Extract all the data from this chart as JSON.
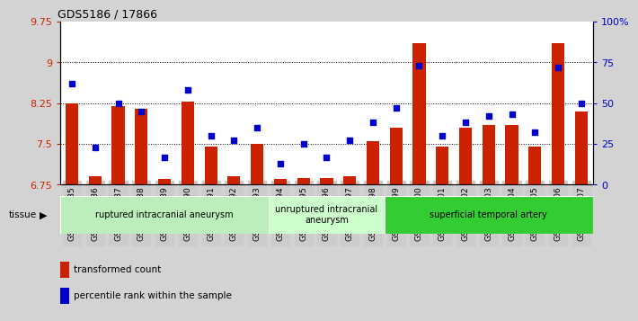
{
  "title": "GDS5186 / 17866",
  "samples": [
    "GSM1306885",
    "GSM1306886",
    "GSM1306887",
    "GSM1306888",
    "GSM1306889",
    "GSM1306890",
    "GSM1306891",
    "GSM1306892",
    "GSM1306893",
    "GSM1306894",
    "GSM1306895",
    "GSM1306896",
    "GSM1306897",
    "GSM1306898",
    "GSM1306899",
    "GSM1306900",
    "GSM1306901",
    "GSM1306902",
    "GSM1306903",
    "GSM1306904",
    "GSM1306905",
    "GSM1306906",
    "GSM1306907"
  ],
  "bar_values": [
    8.25,
    6.9,
    8.2,
    8.15,
    6.85,
    8.28,
    7.45,
    6.9,
    7.5,
    6.85,
    6.88,
    6.88,
    6.9,
    7.55,
    7.8,
    9.35,
    7.45,
    7.8,
    7.85,
    7.85,
    7.45,
    9.35,
    8.1
  ],
  "percentile_values": [
    62,
    23,
    50,
    45,
    17,
    58,
    30,
    27,
    35,
    13,
    25,
    17,
    27,
    38,
    47,
    73,
    30,
    38,
    42,
    43,
    32,
    72,
    50
  ],
  "ylim_left": [
    6.75,
    9.75
  ],
  "ylim_right": [
    0,
    100
  ],
  "yticks_left": [
    6.75,
    7.5,
    8.25,
    9.0,
    9.75
  ],
  "yticks_right": [
    0,
    25,
    50,
    75,
    100
  ],
  "grid_lines": [
    7.5,
    8.25,
    9.0
  ],
  "bar_color": "#CC2200",
  "dot_color": "#0000CC",
  "groups": [
    {
      "label": "ruptured intracranial aneurysm",
      "start": 0,
      "end": 9,
      "color": "#BBEEBB"
    },
    {
      "label": "unruptured intracranial\naneurysm",
      "start": 9,
      "end": 14,
      "color": "#CCFFCC"
    },
    {
      "label": "superficial temporal artery",
      "start": 14,
      "end": 23,
      "color": "#33CC33"
    }
  ],
  "tissue_label": "tissue",
  "legend_bar_label": "transformed count",
  "legend_dot_label": "percentile rank within the sample",
  "background_color": "#D3D3D3",
  "plot_bg_color": "#FFFFFF",
  "xtick_bg_color": "#CCCCCC"
}
